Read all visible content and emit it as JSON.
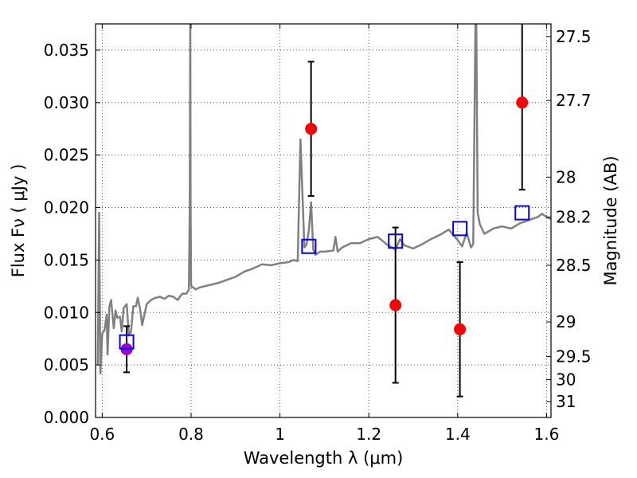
{
  "chart_data": {
    "type": "scatter",
    "xlabel": "Wavelength  λ (μm)",
    "ylabel": "Flux  Fν  ( μJy )",
    "ylabel_right": "Magnitude (AB)",
    "xlim": [
      0.585,
      1.61
    ],
    "ylim": [
      0.0,
      0.0375
    ],
    "grid": true,
    "x_ticks": [
      {
        "value": 0.6,
        "label": "0.6"
      },
      {
        "value": 0.8,
        "label": "0.8"
      },
      {
        "value": 1.0,
        "label": "1"
      },
      {
        "value": 1.2,
        "label": "1.2"
      },
      {
        "value": 1.4,
        "label": "1.4"
      },
      {
        "value": 1.6,
        "label": "1.6"
      }
    ],
    "y_ticks": [
      {
        "value": 0.0,
        "label": "0.000"
      },
      {
        "value": 0.005,
        "label": "0.005"
      },
      {
        "value": 0.01,
        "label": "0.010"
      },
      {
        "value": 0.015,
        "label": "0.015"
      },
      {
        "value": 0.02,
        "label": "0.020"
      },
      {
        "value": 0.025,
        "label": "0.025"
      },
      {
        "value": 0.03,
        "label": "0.030"
      },
      {
        "value": 0.035,
        "label": "0.035"
      }
    ],
    "right_ticks": [
      {
        "flux": 0.0363,
        "label": "27.5"
      },
      {
        "flux": 0.0302,
        "label": "27.7"
      },
      {
        "flux": 0.0229,
        "label": "28"
      },
      {
        "flux": 0.0191,
        "label": "28.2"
      },
      {
        "flux": 0.0145,
        "label": "28.5"
      },
      {
        "flux": 0.0091,
        "label": "29"
      },
      {
        "flux": 0.0058,
        "label": "29.5"
      },
      {
        "flux": 0.0036,
        "label": "30"
      },
      {
        "flux": 0.0015,
        "label": "31"
      }
    ],
    "series": [
      {
        "kind": "line",
        "color": "#808080",
        "x": [
          0.59,
          0.593,
          0.596,
          0.6,
          0.605,
          0.61,
          0.612,
          0.616,
          0.62,
          0.626,
          0.63,
          0.634,
          0.64,
          0.644,
          0.648,
          0.655,
          0.66,
          0.665,
          0.67,
          0.676,
          0.68,
          0.685,
          0.69,
          0.695,
          0.7,
          0.71,
          0.72,
          0.73,
          0.74,
          0.75,
          0.76,
          0.77,
          0.78,
          0.79,
          0.795,
          0.797,
          0.798,
          0.799,
          0.8,
          0.802,
          0.805,
          0.81,
          0.82,
          0.84,
          0.86,
          0.88,
          0.9,
          0.92,
          0.94,
          0.96,
          0.98,
          1.0,
          1.02,
          1.03,
          1.04,
          1.046,
          1.05,
          1.055,
          1.06,
          1.065,
          1.07,
          1.075,
          1.08,
          1.09,
          1.1,
          1.12,
          1.125,
          1.13,
          1.14,
          1.16,
          1.18,
          1.2,
          1.22,
          1.24,
          1.26,
          1.27,
          1.28,
          1.3,
          1.32,
          1.34,
          1.36,
          1.38,
          1.4,
          1.41,
          1.42,
          1.43,
          1.435,
          1.44,
          1.442,
          1.445,
          1.45,
          1.46,
          1.48,
          1.5,
          1.52,
          1.54,
          1.56,
          1.58,
          1.59,
          1.6,
          1.61
        ],
        "y": [
          0.005,
          0.0195,
          0.0042,
          0.008,
          0.0083,
          0.0098,
          0.006,
          0.0105,
          0.0112,
          0.0085,
          0.0102,
          0.0095,
          0.0096,
          0.0082,
          0.0104,
          0.0108,
          0.0078,
          0.0082,
          0.0106,
          0.0106,
          0.0114,
          0.0104,
          0.0088,
          0.0098,
          0.0108,
          0.0112,
          0.0114,
          0.0115,
          0.0113,
          0.0116,
          0.0115,
          0.0112,
          0.0118,
          0.0118,
          0.0122,
          0.02,
          0.0375,
          0.02,
          0.0126,
          0.0124,
          0.0124,
          0.0122,
          0.0124,
          0.0126,
          0.0128,
          0.0131,
          0.0134,
          0.0139,
          0.0142,
          0.0146,
          0.0145,
          0.0147,
          0.0148,
          0.015,
          0.0149,
          0.0265,
          0.022,
          0.0162,
          0.0165,
          0.0178,
          0.0205,
          0.016,
          0.0155,
          0.0158,
          0.0158,
          0.0159,
          0.0172,
          0.0158,
          0.0162,
          0.0166,
          0.0166,
          0.017,
          0.0172,
          0.0165,
          0.016,
          0.017,
          0.0164,
          0.0161,
          0.0165,
          0.017,
          0.0174,
          0.0179,
          0.0169,
          0.0163,
          0.0176,
          0.0162,
          0.0165,
          0.0375,
          0.0375,
          0.0195,
          0.0184,
          0.0175,
          0.018,
          0.0182,
          0.018,
          0.0185,
          0.0188,
          0.0191,
          0.0194,
          0.0191,
          0.0189
        ]
      },
      {
        "kind": "points",
        "marker": "circle",
        "color": "#ff0000",
        "points": [
          {
            "x": 1.07,
            "y": 0.0275,
            "yerr": 0.0064
          },
          {
            "x": 1.26,
            "y": 0.0107,
            "yerr": 0.0074
          },
          {
            "x": 1.405,
            "y": 0.0084,
            "yerr": 0.0064
          },
          {
            "x": 1.545,
            "y": 0.03,
            "yerr": 0.0083
          }
        ]
      },
      {
        "kind": "points",
        "marker": "circle",
        "color": "#a000c8",
        "points": [
          {
            "x": 0.655,
            "y": 0.0065,
            "yerr": 0.0022
          }
        ]
      },
      {
        "kind": "points",
        "marker": "square-open",
        "color": "#0000ff",
        "points": [
          {
            "x": 0.655,
            "y": 0.0072
          },
          {
            "x": 1.065,
            "y": 0.0163
          },
          {
            "x": 1.26,
            "y": 0.0168
          },
          {
            "x": 1.405,
            "y": 0.018
          },
          {
            "x": 1.545,
            "y": 0.0195
          }
        ]
      }
    ]
  }
}
